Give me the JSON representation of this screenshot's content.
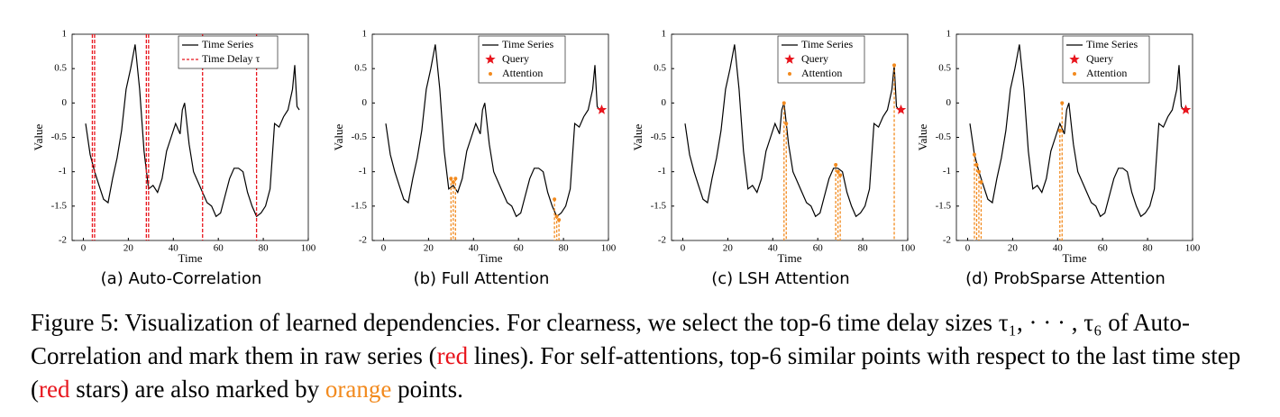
{
  "chart_data": [
    {
      "type": "line",
      "subcaption": "(a) Auto-Correlation",
      "xlabel": "Time",
      "ylabel": "Value",
      "x": [
        1,
        3,
        5,
        7,
        9,
        11,
        13,
        15,
        17,
        19,
        21,
        23,
        25,
        27,
        29,
        31,
        33,
        35,
        37,
        39,
        41,
        43,
        44,
        45,
        46,
        47,
        49,
        51,
        53,
        55,
        57,
        59,
        61,
        63,
        65,
        67,
        69,
        71,
        73,
        75,
        77,
        79,
        81,
        83,
        85,
        87,
        89,
        91,
        93,
        94,
        95,
        96
      ],
      "series": [
        {
          "name": "Time Series",
          "color": "#000000",
          "values": [
            -0.3,
            -0.75,
            -1.0,
            -1.2,
            -1.4,
            -1.45,
            -1.1,
            -0.8,
            -0.4,
            0.2,
            0.5,
            0.85,
            0.2,
            -0.7,
            -1.25,
            -1.2,
            -1.3,
            -1.1,
            -0.7,
            -0.5,
            -0.3,
            -0.45,
            -0.1,
            0.0,
            -0.3,
            -0.6,
            -1.0,
            -1.15,
            -1.3,
            -1.45,
            -1.5,
            -1.65,
            -1.6,
            -1.35,
            -1.1,
            -0.95,
            -0.95,
            -1.0,
            -1.3,
            -1.5,
            -1.65,
            -1.6,
            -1.5,
            -1.25,
            -0.3,
            -0.35,
            -0.2,
            -0.1,
            0.2,
            0.55,
            -0.05,
            -0.1
          ]
        }
      ],
      "delays": {
        "name": "Time Delay τ",
        "color": "#e8141c",
        "x": [
          4,
          5,
          28,
          29,
          53,
          77
        ]
      },
      "xlim": [
        -5,
        100
      ],
      "ylim": [
        -2,
        1
      ],
      "xticks": [
        0,
        20,
        40,
        60,
        80,
        100
      ],
      "yticks": [
        1,
        0.5,
        0,
        -0.5,
        -1,
        -1.5,
        -2
      ]
    },
    {
      "type": "line",
      "subcaption": "(b) Full Attention",
      "xlabel": "Time",
      "ylabel": "Value",
      "x": [
        1,
        3,
        5,
        7,
        9,
        11,
        13,
        15,
        17,
        19,
        21,
        23,
        25,
        27,
        29,
        31,
        33,
        35,
        37,
        39,
        41,
        43,
        44,
        45,
        46,
        47,
        49,
        51,
        53,
        55,
        57,
        59,
        61,
        63,
        65,
        67,
        69,
        71,
        73,
        75,
        77,
        79,
        81,
        83,
        85,
        87,
        89,
        91,
        93,
        94,
        95,
        96
      ],
      "series": [
        {
          "name": "Time Series",
          "color": "#000000",
          "values": [
            -0.3,
            -0.75,
            -1.0,
            -1.2,
            -1.4,
            -1.45,
            -1.1,
            -0.8,
            -0.4,
            0.2,
            0.5,
            0.85,
            0.2,
            -0.7,
            -1.25,
            -1.2,
            -1.3,
            -1.1,
            -0.7,
            -0.5,
            -0.3,
            -0.45,
            -0.1,
            0.0,
            -0.3,
            -0.6,
            -1.0,
            -1.15,
            -1.3,
            -1.45,
            -1.5,
            -1.65,
            -1.6,
            -1.35,
            -1.1,
            -0.95,
            -0.95,
            -1.0,
            -1.3,
            -1.5,
            -1.65,
            -1.6,
            -1.5,
            -1.25,
            -0.3,
            -0.35,
            -0.2,
            -0.1,
            0.2,
            0.55,
            -0.05,
            -0.1
          ]
        }
      ],
      "query": {
        "name": "Query",
        "color": "#e8141c",
        "x": [
          97
        ],
        "y": [
          -0.1
        ]
      },
      "attention": {
        "name": "Attention",
        "color": "#f28a1e",
        "x": [
          30,
          31,
          32,
          76,
          77,
          78
        ],
        "y": [
          -1.1,
          -1.15,
          -1.1,
          -1.4,
          -1.65,
          -1.7
        ]
      },
      "xlim": [
        -5,
        100
      ],
      "ylim": [
        -2,
        1
      ],
      "xticks": [
        0,
        20,
        40,
        60,
        80,
        100
      ],
      "yticks": [
        1,
        0.5,
        0,
        -0.5,
        -1,
        -1.5,
        -2
      ]
    },
    {
      "type": "line",
      "subcaption": "(c) LSH Attention",
      "xlabel": "Time",
      "ylabel": "Value",
      "x": [
        1,
        3,
        5,
        7,
        9,
        11,
        13,
        15,
        17,
        19,
        21,
        23,
        25,
        27,
        29,
        31,
        33,
        35,
        37,
        39,
        41,
        43,
        44,
        45,
        46,
        47,
        49,
        51,
        53,
        55,
        57,
        59,
        61,
        63,
        65,
        67,
        69,
        71,
        73,
        75,
        77,
        79,
        81,
        83,
        85,
        87,
        89,
        91,
        93,
        94,
        95,
        96
      ],
      "series": [
        {
          "name": "Time Series",
          "color": "#000000",
          "values": [
            -0.3,
            -0.75,
            -1.0,
            -1.2,
            -1.4,
            -1.45,
            -1.1,
            -0.8,
            -0.4,
            0.2,
            0.5,
            0.85,
            0.2,
            -0.7,
            -1.25,
            -1.2,
            -1.3,
            -1.1,
            -0.7,
            -0.5,
            -0.3,
            -0.45,
            -0.1,
            0.0,
            -0.3,
            -0.6,
            -1.0,
            -1.15,
            -1.3,
            -1.45,
            -1.5,
            -1.65,
            -1.6,
            -1.35,
            -1.1,
            -0.95,
            -0.95,
            -1.0,
            -1.3,
            -1.5,
            -1.65,
            -1.6,
            -1.5,
            -1.25,
            -0.3,
            -0.35,
            -0.2,
            -0.1,
            0.2,
            0.55,
            -0.05,
            -0.1
          ]
        }
      ],
      "query": {
        "name": "Query",
        "color": "#e8141c",
        "x": [
          97
        ],
        "y": [
          -0.1
        ]
      },
      "attention": {
        "name": "Attention",
        "color": "#f28a1e",
        "x": [
          45,
          46,
          68,
          69,
          70,
          94
        ],
        "y": [
          0.0,
          -0.3,
          -0.9,
          -1.0,
          -1.05,
          0.55
        ]
      },
      "xlim": [
        -5,
        100
      ],
      "ylim": [
        -2,
        1
      ],
      "xticks": [
        0,
        20,
        40,
        60,
        80,
        100
      ],
      "yticks": [
        1,
        0.5,
        0,
        -0.5,
        -1,
        -1.5,
        -2
      ]
    },
    {
      "type": "line",
      "subcaption": "(d) ProbSparse Attention",
      "xlabel": "Time",
      "ylabel": "Value",
      "x": [
        1,
        3,
        5,
        7,
        9,
        11,
        13,
        15,
        17,
        19,
        21,
        23,
        25,
        27,
        29,
        31,
        33,
        35,
        37,
        39,
        41,
        43,
        44,
        45,
        46,
        47,
        49,
        51,
        53,
        55,
        57,
        59,
        61,
        63,
        65,
        67,
        69,
        71,
        73,
        75,
        77,
        79,
        81,
        83,
        85,
        87,
        89,
        91,
        93,
        94,
        95,
        96
      ],
      "series": [
        {
          "name": "Time Series",
          "color": "#000000",
          "values": [
            -0.3,
            -0.75,
            -1.0,
            -1.2,
            -1.4,
            -1.45,
            -1.1,
            -0.8,
            -0.4,
            0.2,
            0.5,
            0.85,
            0.2,
            -0.7,
            -1.25,
            -1.2,
            -1.3,
            -1.1,
            -0.7,
            -0.5,
            -0.3,
            -0.45,
            -0.1,
            0.0,
            -0.3,
            -0.6,
            -1.0,
            -1.15,
            -1.3,
            -1.45,
            -1.5,
            -1.65,
            -1.6,
            -1.35,
            -1.1,
            -0.95,
            -0.95,
            -1.0,
            -1.3,
            -1.5,
            -1.65,
            -1.6,
            -1.5,
            -1.25,
            -0.3,
            -0.35,
            -0.2,
            -0.1,
            0.2,
            0.55,
            -0.05,
            -0.1
          ]
        }
      ],
      "query": {
        "name": "Query",
        "color": "#e8141c",
        "x": [
          97
        ],
        "y": [
          -0.1
        ]
      },
      "attention": {
        "name": "Attention",
        "color": "#f28a1e",
        "x": [
          3,
          4,
          5,
          6,
          41,
          42
        ],
        "y": [
          -0.75,
          -0.9,
          -1.0,
          -1.15,
          -0.4,
          0.0
        ]
      },
      "xlim": [
        -5,
        100
      ],
      "ylim": [
        -2,
        1
      ],
      "xticks": [
        0,
        20,
        40,
        60,
        80,
        100
      ],
      "yticks": [
        1,
        0.5,
        0,
        -0.5,
        -1,
        -1.5,
        -2
      ]
    }
  ],
  "caption": {
    "parts": [
      "Figure 5: Visualization of learned dependencies. For clearness, we select the top-6 time delay sizes τ₁, · · · , τ₆ of Auto-Correlation and mark them in raw series (",
      "red",
      " lines). For self-attentions, top-6 similar points with respect to the last time step (",
      "red",
      " stars) are also marked by ",
      "orange",
      " points."
    ],
    "colors": [
      null,
      "#e8141c",
      null,
      "#e8141c",
      null,
      "#f28a1e",
      null
    ]
  }
}
